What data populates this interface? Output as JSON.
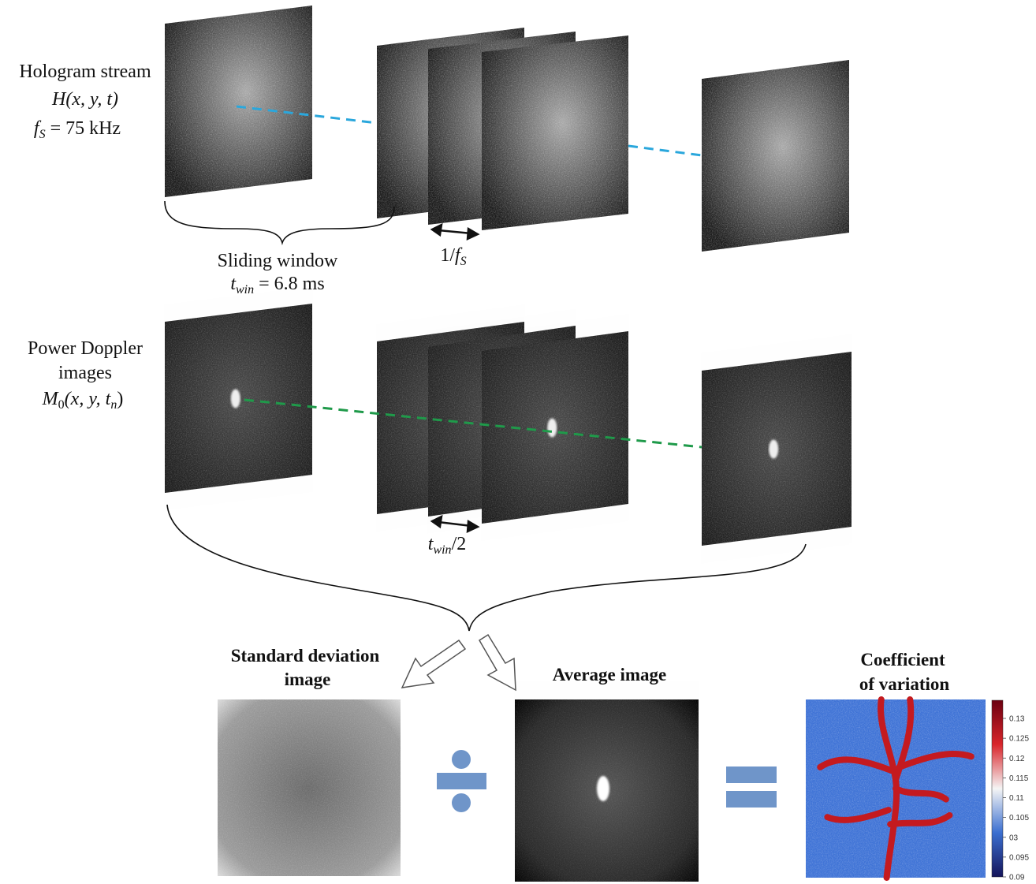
{
  "hologram": {
    "label": "Hologram stream",
    "formula": "H(x, y, t)",
    "rate": {
      "symbol": "f",
      "sub": "S",
      "rest": " = 75 kHz"
    },
    "period": {
      "lead": "1/",
      "symbol": "f",
      "sub": "S"
    }
  },
  "window": {
    "label": "Sliding window",
    "formula": {
      "symbol": "t",
      "sub": "win",
      "rest": " = 6.8 ms"
    }
  },
  "doppler": {
    "label": [
      "Power Doppler",
      "images"
    ],
    "formula": {
      "symbol": "M",
      "sub": "0",
      "rest": "(x, y, t",
      "sub2": "n",
      "end": ")"
    },
    "step": {
      "symbol": "t",
      "sub": "win",
      "rest": "/2"
    }
  },
  "outputs": {
    "std": [
      "Standard deviation",
      "image"
    ],
    "average": "Average image",
    "cv": [
      "Coefficient",
      "of variation"
    ],
    "colorbar": [
      "0.13",
      "0.125",
      "0.12",
      "0.115",
      "0.11",
      "0.105",
      "03",
      "0.095",
      "0.09"
    ]
  }
}
